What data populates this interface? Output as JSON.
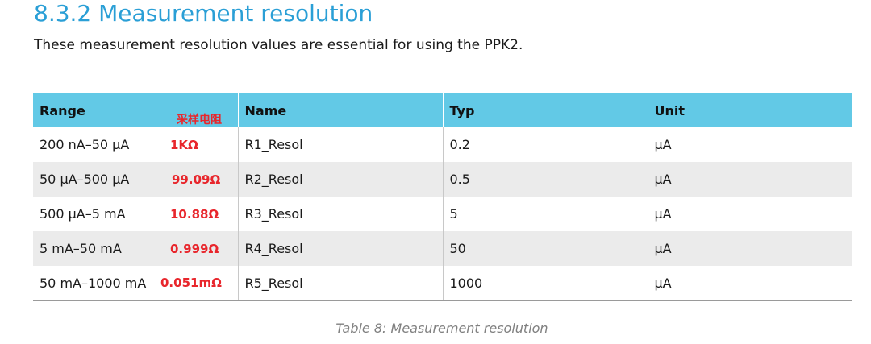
{
  "section": {
    "title": "8.3.2 Measurement resolution",
    "intro": "These measurement resolution values are essential for using the PPK2."
  },
  "table": {
    "headers": {
      "range": "Range",
      "range_note": "采样电阻",
      "name": "Name",
      "typ": "Typ",
      "unit": "Unit"
    },
    "rows": [
      {
        "range": "200 nA–50 µA",
        "resistor": "1KΩ",
        "name": "R1_Resol",
        "typ": "0.2",
        "unit": "µA"
      },
      {
        "range": "50 µA–500 µA",
        "resistor": "99.09Ω",
        "name": "R2_Resol",
        "typ": "0.5",
        "unit": "µA"
      },
      {
        "range": "500 µA–5 mA",
        "resistor": "10.88Ω",
        "name": "R3_Resol",
        "typ": "5",
        "unit": "µA"
      },
      {
        "range": "5 mA–50 mA",
        "resistor": "0.999Ω",
        "name": "R4_Resol",
        "typ": "50",
        "unit": "µA"
      },
      {
        "range": "50 mA–1000 mA",
        "resistor": "0.051mΩ",
        "name": "R5_Resol",
        "typ": "1000",
        "unit": "µA"
      }
    ]
  },
  "caption": "Table 8: Measurement resolution",
  "colors": {
    "heading": "#2a9fd6",
    "header_background": "#62c9e6",
    "annotation": "#e8262c",
    "stripe": "#ebebeb"
  }
}
